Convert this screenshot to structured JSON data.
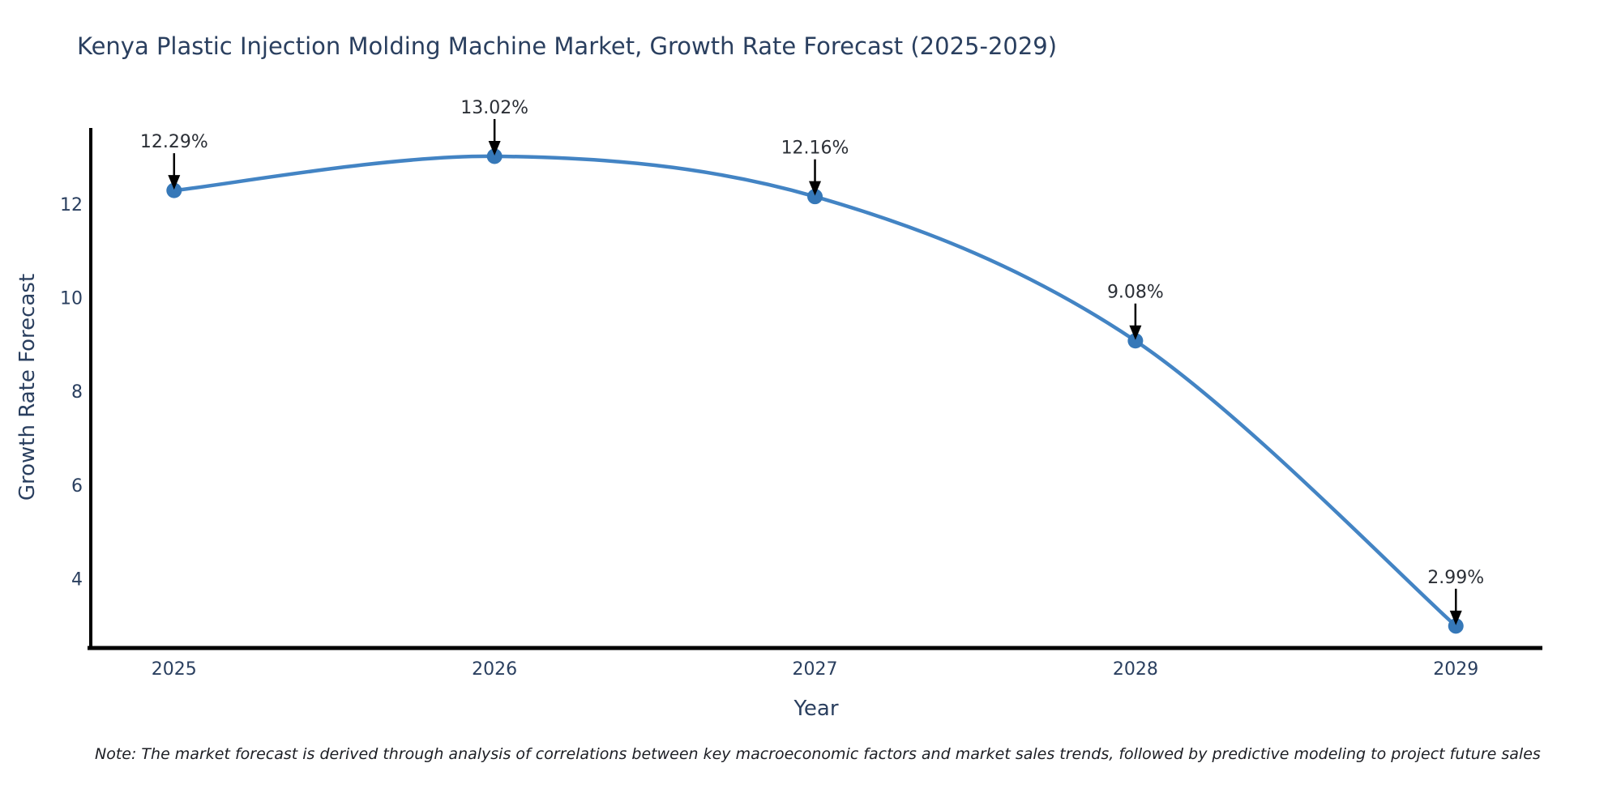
{
  "page": {
    "background": "#ffffff"
  },
  "chart_data": {
    "type": "line",
    "title": "Kenya Plastic Injection Molding Machine Market, Growth Rate Forecast (2025-2029)",
    "xlabel": "Year",
    "ylabel": "Growth Rate Forecast",
    "x": [
      2025,
      2026,
      2027,
      2028,
      2029
    ],
    "series": [
      {
        "name": "Growth Rate Forecast",
        "values": [
          12.29,
          13.02,
          12.16,
          9.08,
          2.99
        ],
        "point_labels": [
          "12.29%",
          "13.02%",
          "12.16%",
          "9.08%",
          "2.99%"
        ]
      }
    ],
    "line_shape": "spline",
    "markers": true,
    "grid": false,
    "legend": false,
    "annotations_style": "value label with downward arrow above each data point",
    "xtick_labels": [
      "2025",
      "2026",
      "2027",
      "2028",
      "2029"
    ],
    "ytick_values": [
      4,
      6,
      8,
      10,
      12
    ],
    "xlim": [
      2024.74,
      2029.27
    ],
    "ylim": [
      2.52,
      13.59
    ],
    "note": "Note: The market forecast is derived through analysis of correlations between key macroeconomic factors and market sales trends, followed by predictive modeling to project future sales",
    "colors": {
      "line": "#4384c4",
      "marker": "#3678b8",
      "axis": "#000000",
      "arrow": "#000000",
      "tick_text": "#2a3f5f",
      "title_text": "#2a3f5f",
      "annotation_text": "#2b2f36",
      "note_text": "#1c1e24",
      "background": "#ffffff"
    }
  }
}
